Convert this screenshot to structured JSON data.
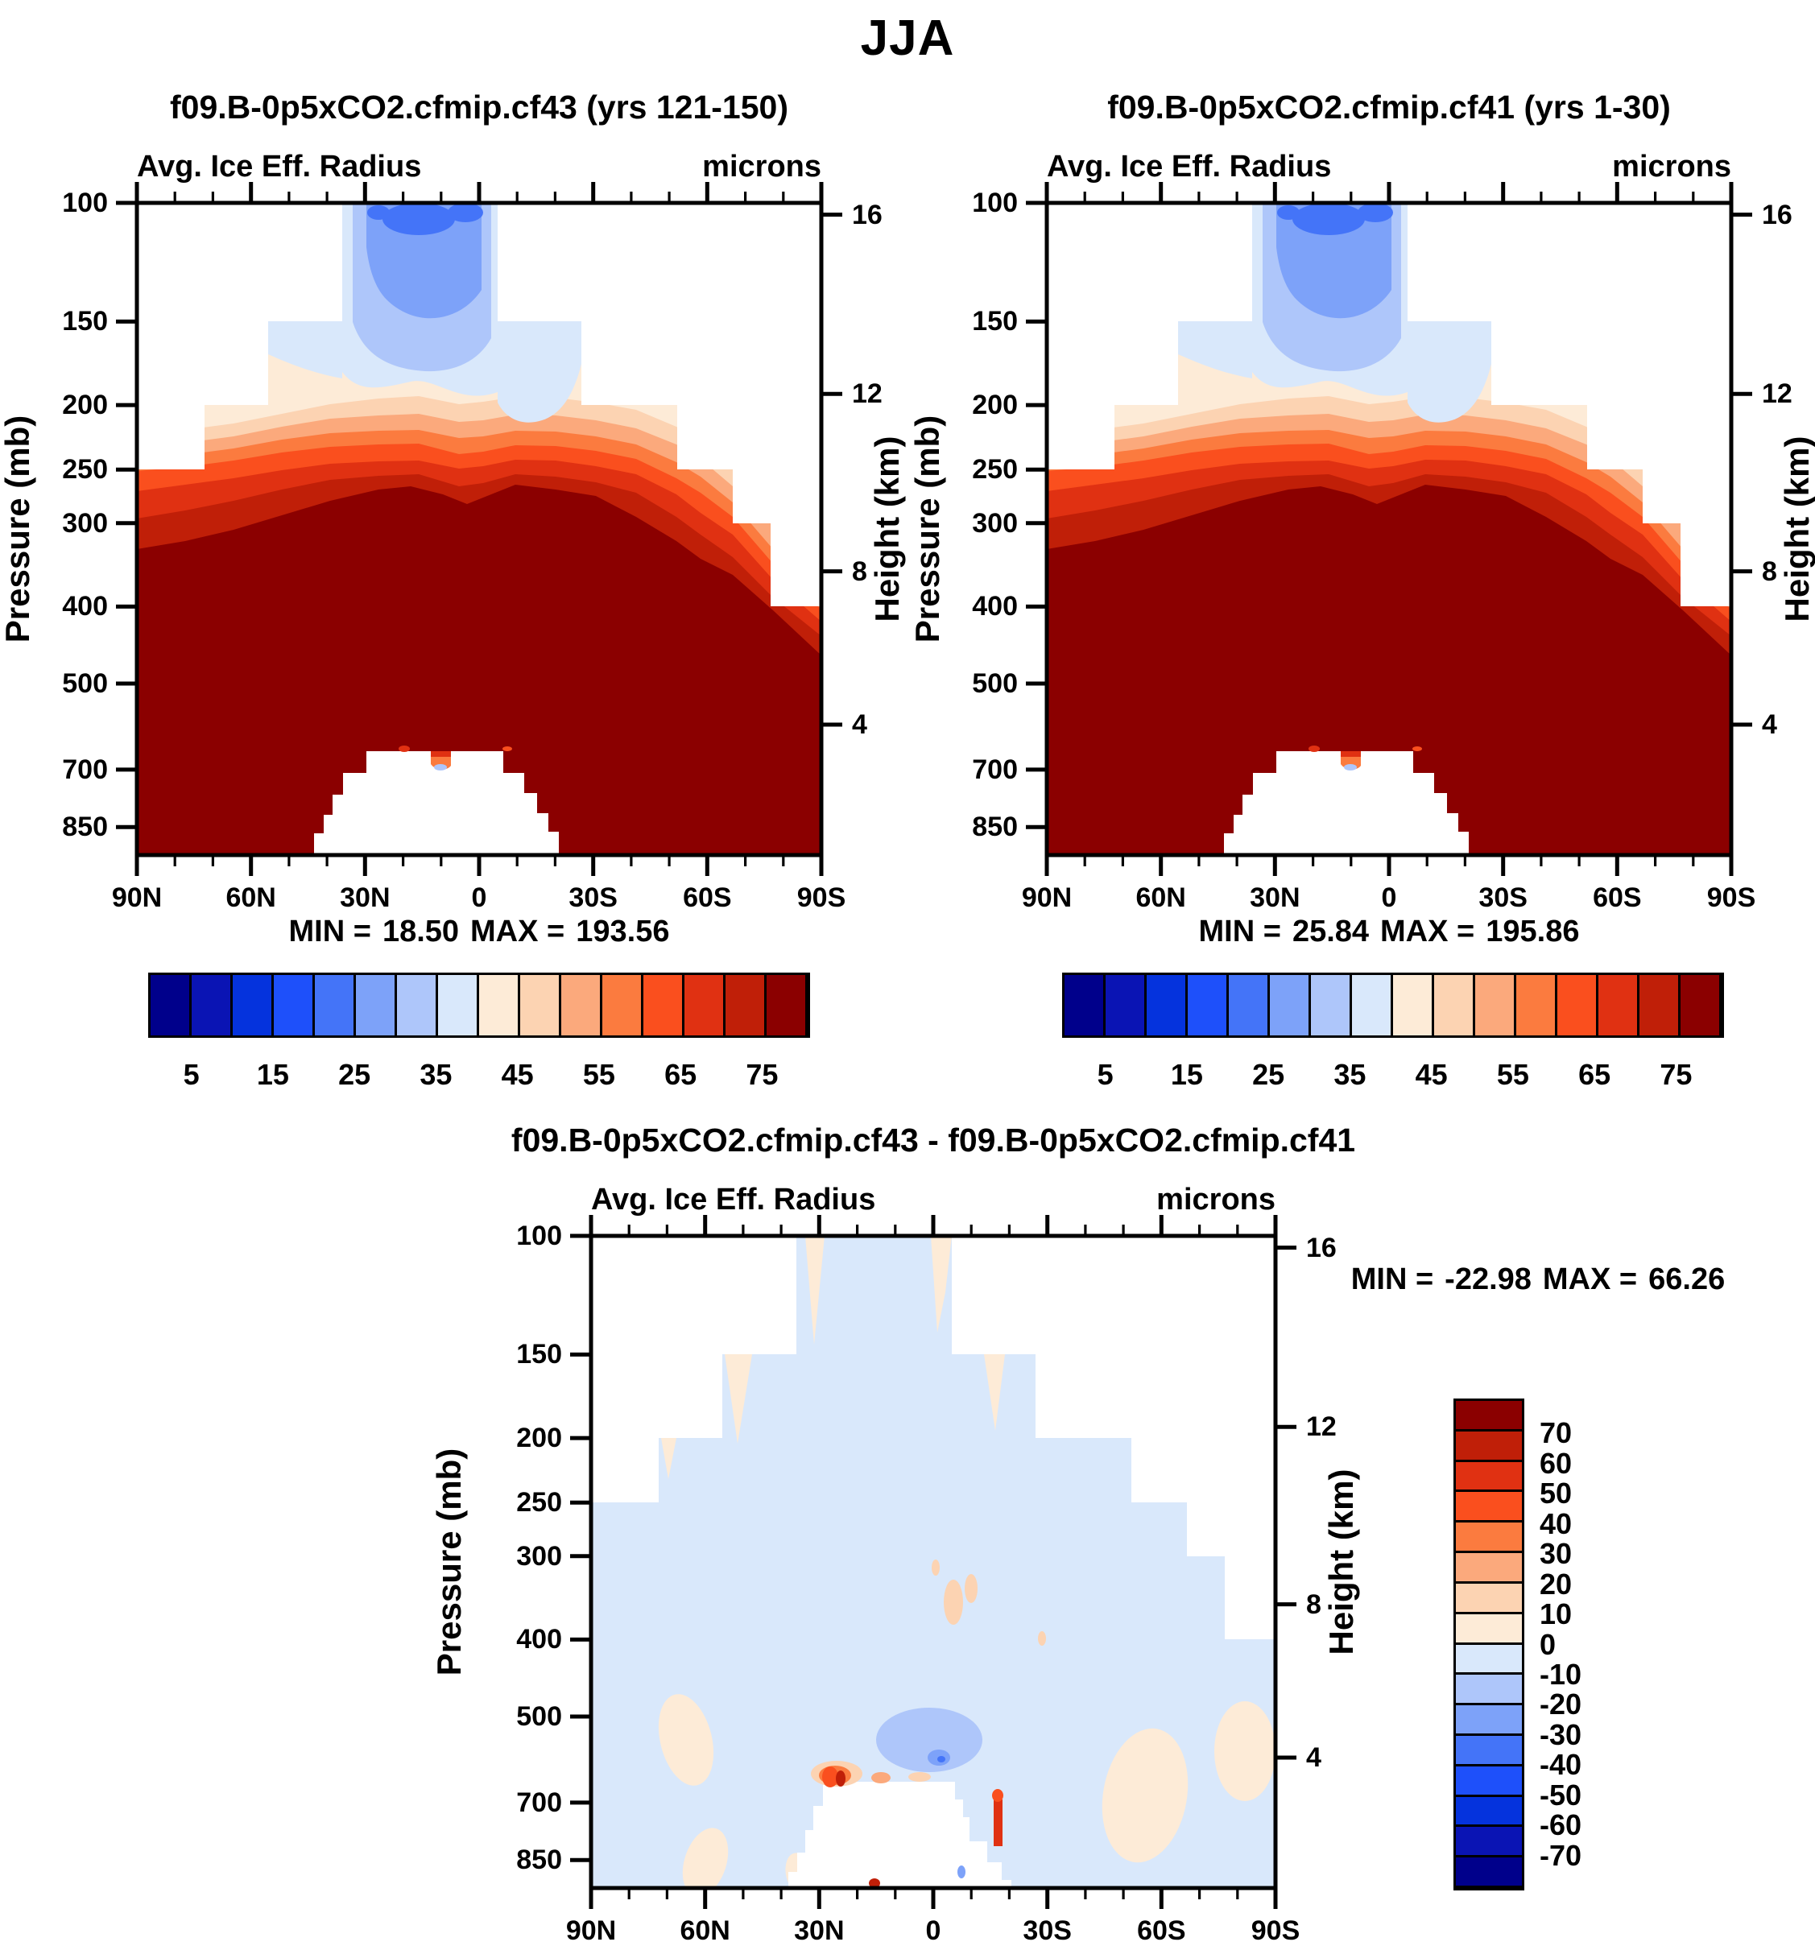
{
  "main_title": "JJA",
  "panels": {
    "left": {
      "title": "f09.B-0p5xCO2.cfmip.cf43 (yrs 121-150)",
      "subtitle": "Avg. Ice Eff. Radius",
      "units": "microns",
      "min_label": "MIN =",
      "min_value": "18.50",
      "max_label": "MAX =",
      "max_value": "193.56"
    },
    "right": {
      "title": "f09.B-0p5xCO2.cfmip.cf41 (yrs 1-30)",
      "subtitle": "Avg. Ice Eff. Radius",
      "units": "microns",
      "min_label": "MIN =",
      "min_value": "25.84",
      "max_label": "MAX =",
      "max_value": "195.86"
    },
    "diff": {
      "title": "f09.B-0p5xCO2.cfmip.cf43 - f09.B-0p5xCO2.cfmip.cf41",
      "subtitle": "Avg. Ice Eff. Radius",
      "units": "microns",
      "min_label": "MIN =",
      "min_value": "-22.98",
      "max_label": "MAX =",
      "max_value": "66.26"
    }
  },
  "axes": {
    "pressure_label": "Pressure (mb)",
    "pressure_ticks": [
      "100",
      "150",
      "200",
      "250",
      "300",
      "400",
      "500",
      "700",
      "850"
    ],
    "height_label": "Height (km)",
    "height_ticks": [
      "16",
      "12",
      "8",
      "4"
    ],
    "lat_ticks": [
      "90N",
      "60N",
      "30N",
      "0",
      "30S",
      "60S",
      "90S"
    ]
  },
  "colorbar": {
    "labels": [
      "5",
      "15",
      "25",
      "35",
      "45",
      "55",
      "65",
      "75"
    ],
    "colors": [
      "#00008B",
      "#0A14B4",
      "#0533DD",
      "#1E50FA",
      "#4474F8",
      "#7DA2F9",
      "#AEC6FA",
      "#D9E8FB",
      "#FDEBD7",
      "#FCD3B2",
      "#FBA97C",
      "#FB7B3F",
      "#FA4F1E",
      "#E03112",
      "#C01F08",
      "#8B0000"
    ]
  },
  "diff_colorbar": {
    "labels": [
      "70",
      "60",
      "50",
      "40",
      "30",
      "20",
      "10",
      "0",
      "-10",
      "-20",
      "-30",
      "-40",
      "-50",
      "-60",
      "-70"
    ]
  },
  "chart_data": [
    {
      "type": "heatmap",
      "subtype": "filled-contour latitude-pressure cross-section",
      "season": "JJA",
      "title": "f09.B-0p5xCO2.cfmip.cf43 (yrs 121-150)",
      "variable": "Avg. Ice Eff. Radius",
      "units": "microns",
      "min": 18.5,
      "max": 193.56,
      "xlabel": "",
      "x_ticks": [
        "90N",
        "60N",
        "30N",
        "0",
        "30S",
        "60S",
        "90S"
      ],
      "ylabel_left": "Pressure (mb)",
      "y_ticks_left": [
        100,
        150,
        200,
        250,
        300,
        400,
        500,
        700,
        850
      ],
      "ylabel_right": "Height (km)",
      "y_ticks_right": [
        16,
        12,
        8,
        4
      ],
      "y_scale": "log-pressure, 100 mb at top",
      "contour_levels": [
        5,
        10,
        15,
        20,
        25,
        30,
        35,
        40,
        45,
        50,
        55,
        60,
        65,
        70,
        75
      ],
      "legend_position": "horizontal colorbar below panel",
      "structure": "small radii (blue, <40) 100-170 mb over tropics; values increase downward through 40-75 bands; >75 (dark red) fills below ~300 mb; no data (white) below ~600 mb between ~25N-40S and above staircase data boundary at high latitudes"
    },
    {
      "type": "heatmap",
      "subtype": "filled-contour latitude-pressure cross-section",
      "season": "JJA",
      "title": "f09.B-0p5xCO2.cfmip.cf41 (yrs 1-30)",
      "variable": "Avg. Ice Eff. Radius",
      "units": "microns",
      "min": 25.84,
      "max": 195.86,
      "x_ticks": [
        "90N",
        "60N",
        "30N",
        "0",
        "30S",
        "60S",
        "90S"
      ],
      "ylabel_left": "Pressure (mb)",
      "y_ticks_left": [
        100,
        150,
        200,
        250,
        300,
        400,
        500,
        700,
        850
      ],
      "ylabel_right": "Height (km)",
      "y_ticks_right": [
        16,
        12,
        8,
        4
      ],
      "contour_levels": [
        5,
        10,
        15,
        20,
        25,
        30,
        35,
        40,
        45,
        50,
        55,
        60,
        65,
        70,
        75
      ],
      "legend_position": "horizontal colorbar below panel",
      "structure": "same pattern as cf43 panel"
    },
    {
      "type": "heatmap",
      "subtype": "filled-contour difference (cf43 minus cf41)",
      "season": "JJA",
      "title": "f09.B-0p5xCO2.cfmip.cf43 - f09.B-0p5xCO2.cfmip.cf41",
      "variable": "Avg. Ice Eff. Radius",
      "units": "microns",
      "min": -22.98,
      "max": 66.26,
      "x_ticks": [
        "90N",
        "60N",
        "30N",
        "0",
        "30S",
        "60S",
        "90S"
      ],
      "ylabel_left": "Pressure (mb)",
      "y_ticks_left": [
        100,
        150,
        200,
        250,
        300,
        400,
        500,
        700,
        850
      ],
      "ylabel_right": "Height (km)",
      "y_ticks_right": [
        16,
        12,
        8,
        4
      ],
      "contour_levels": [
        -70,
        -60,
        -50,
        -40,
        -30,
        -20,
        -10,
        0,
        10,
        20,
        30,
        40,
        50,
        60,
        70
      ],
      "legend_position": "vertical colorbar at right",
      "structure": "field mostly in -10..0 band (pale blue); 0..10 (cream) patches near 55-65N ~500-650 mb, 40-60S ~550-780 mb and at step edges; -20..-10 blob near equator ~520-650 mb; small positive spots up to +66 at top edge of no-data dome ~650 mb near 10N-20S"
    }
  ]
}
